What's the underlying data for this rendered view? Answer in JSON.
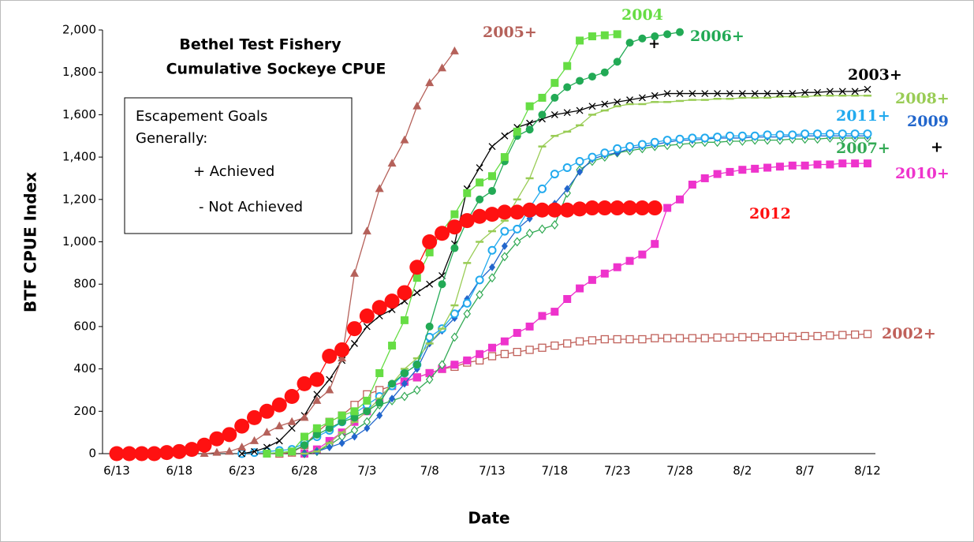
{
  "chart_data": {
    "type": "line",
    "title": [
      "Bethel Test Fishery",
      "Cumulative Sockeye CPUE"
    ],
    "box_text": [
      "Escapement  Goals",
      "Generally:",
      "+ Achieved",
      "- Not Achieved"
    ],
    "ylabel": "BTF CPUE Index",
    "xlabel": "Date",
    "annotations": [
      "+",
      "+"
    ],
    "categories": [
      "6/13",
      null,
      null,
      null,
      null,
      "6/18",
      null,
      null,
      null,
      null,
      "6/23",
      null,
      null,
      null,
      null,
      "6/28",
      null,
      null,
      null,
      null,
      "7/3",
      null,
      null,
      null,
      null,
      "7/8",
      null,
      null,
      null,
      null,
      "7/13",
      null,
      null,
      null,
      null,
      "7/18",
      null,
      null,
      null,
      null,
      "7/23",
      null,
      null,
      null,
      null,
      "7/28",
      null,
      null,
      null,
      null,
      "8/2",
      null,
      null,
      null,
      null,
      "8/7",
      null,
      null,
      null,
      null,
      "8/12"
    ],
    "ylim": [
      0,
      2000
    ],
    "yticks": [
      0,
      200,
      400,
      600,
      800,
      {
        "value": 1000,
        "label": "1,000"
      },
      {
        "value": 1200,
        "label": "1,200"
      },
      {
        "value": 1400,
        "label": "1,400"
      },
      {
        "value": 1600,
        "label": "1,600"
      },
      {
        "value": 1800,
        "label": "1,800"
      },
      {
        "value": 2000,
        "label": "2,000"
      }
    ],
    "grid": false,
    "series": [
      {
        "name": "2002+",
        "color": "#c0605a",
        "marker": "osquare",
        "values": [
          null,
          null,
          null,
          null,
          null,
          null,
          null,
          null,
          null,
          null,
          null,
          null,
          null,
          0,
          5,
          40,
          100,
          150,
          180,
          230,
          280,
          300,
          320,
          340,
          360,
          380,
          400,
          410,
          430,
          440,
          460,
          470,
          480,
          490,
          500,
          510,
          520,
          530,
          535,
          540,
          540,
          540,
          540,
          545,
          545,
          545,
          545,
          545,
          548,
          548,
          550,
          550,
          550,
          552,
          552,
          555,
          555,
          558,
          560,
          562,
          565
        ]
      },
      {
        "name": "2010+",
        "color": "#ee33cc",
        "marker": "square",
        "values": [
          null,
          null,
          null,
          null,
          null,
          null,
          null,
          null,
          null,
          null,
          null,
          null,
          null,
          null,
          null,
          0,
          20,
          60,
          100,
          150,
          200,
          260,
          320,
          340,
          360,
          380,
          400,
          420,
          440,
          470,
          500,
          530,
          570,
          600,
          650,
          670,
          730,
          780,
          820,
          850,
          880,
          910,
          940,
          990,
          1160,
          1200,
          1270,
          1300,
          1320,
          1330,
          1340,
          1345,
          1350,
          1355,
          1360,
          1360,
          1365,
          1365,
          1370,
          1370,
          1370
        ]
      },
      {
        "name": "2007+",
        "color": "#33aa55",
        "marker": "odiamond",
        "values": [
          null,
          null,
          null,
          null,
          null,
          null,
          null,
          null,
          null,
          null,
          null,
          null,
          null,
          null,
          null,
          0,
          10,
          40,
          80,
          110,
          150,
          230,
          250,
          270,
          300,
          350,
          420,
          550,
          660,
          750,
          830,
          930,
          1000,
          1040,
          1060,
          1080,
          1230,
          1340,
          1380,
          1400,
          1420,
          1430,
          1440,
          1450,
          1455,
          1460,
          1465,
          1470,
          1470,
          1475,
          1475,
          1480,
          1480,
          1480,
          1485,
          1485,
          1485,
          1490,
          1490,
          1490,
          1490
        ]
      },
      {
        "name": "2009",
        "color": "#2266cc",
        "marker": "diamond",
        "values": [
          null,
          null,
          null,
          null,
          null,
          null,
          null,
          null,
          null,
          null,
          null,
          null,
          null,
          null,
          null,
          0,
          10,
          30,
          50,
          80,
          120,
          180,
          260,
          330,
          400,
          520,
          580,
          640,
          730,
          820,
          880,
          980,
          1060,
          1110,
          1150,
          1180,
          1250,
          1330,
          1390,
          1410,
          1420,
          1440,
          1450,
          1460,
          1470,
          1480,
          1480,
          1485,
          1490,
          1490,
          1490,
          1495,
          1495,
          1495,
          1500,
          1500,
          1500,
          1500,
          1500,
          1500,
          1500
        ]
      },
      {
        "name": "2011+",
        "color": "#22aaee",
        "marker": "ocircle",
        "values": [
          null,
          null,
          null,
          null,
          null,
          null,
          null,
          null,
          null,
          null,
          0,
          5,
          10,
          15,
          20,
          50,
          80,
          110,
          150,
          190,
          230,
          270,
          320,
          380,
          420,
          550,
          590,
          660,
          710,
          820,
          960,
          1050,
          1060,
          1160,
          1250,
          1320,
          1350,
          1380,
          1400,
          1420,
          1440,
          1450,
          1460,
          1470,
          1480,
          1485,
          1490,
          1490,
          1495,
          1500,
          1500,
          1500,
          1505,
          1505,
          1505,
          1510,
          1510,
          1510,
          1510,
          1510,
          1510
        ]
      },
      {
        "name": "2008+",
        "color": "#99cc55",
        "marker": "dash",
        "values": [
          null,
          null,
          null,
          null,
          null,
          null,
          null,
          null,
          null,
          null,
          null,
          null,
          null,
          null,
          null,
          0,
          10,
          50,
          100,
          150,
          200,
          260,
          330,
          400,
          450,
          520,
          590,
          700,
          900,
          1000,
          1050,
          1100,
          1200,
          1300,
          1450,
          1500,
          1520,
          1550,
          1600,
          1620,
          1640,
          1650,
          1650,
          1660,
          1660,
          1665,
          1670,
          1670,
          1675,
          1675,
          1680,
          1680,
          1680,
          1685,
          1685,
          1685,
          1690,
          1690,
          1690,
          1690,
          1690
        ]
      },
      {
        "name": "2003+",
        "color": "#000000",
        "marker": "x",
        "values": [
          null,
          null,
          null,
          null,
          null,
          null,
          null,
          null,
          null,
          null,
          0,
          10,
          30,
          60,
          120,
          180,
          280,
          350,
          440,
          520,
          600,
          650,
          680,
          720,
          760,
          800,
          840,
          990,
          1250,
          1350,
          1450,
          1500,
          1540,
          1560,
          1580,
          1600,
          1610,
          1620,
          1640,
          1650,
          1660,
          1670,
          1680,
          1690,
          1700,
          1700,
          1700,
          1700,
          1700,
          1700,
          1700,
          1700,
          1700,
          1700,
          1700,
          1705,
          1705,
          1710,
          1710,
          1710,
          1720
        ]
      },
      {
        "name": "2006+",
        "color": "#22aa55",
        "marker": "circle",
        "values": [
          null,
          null,
          null,
          null,
          null,
          null,
          null,
          null,
          null,
          null,
          null,
          null,
          0,
          5,
          10,
          40,
          90,
          120,
          150,
          170,
          200,
          240,
          330,
          380,
          420,
          600,
          800,
          970,
          1100,
          1200,
          1240,
          1380,
          1500,
          1530,
          1600,
          1680,
          1730,
          1760,
          1780,
          1800,
          1850,
          1940,
          1960,
          1970,
          1980,
          1990,
          null,
          null,
          null,
          null,
          null,
          null,
          null,
          null,
          null,
          null,
          null,
          null,
          null,
          null,
          null
        ]
      },
      {
        "name": "2004",
        "color": "#66dd44",
        "marker": "square",
        "values": [
          null,
          null,
          null,
          null,
          null,
          null,
          null,
          null,
          null,
          null,
          null,
          null,
          0,
          5,
          10,
          80,
          120,
          150,
          180,
          200,
          250,
          380,
          510,
          630,
          830,
          950,
          1050,
          1130,
          1230,
          1280,
          1310,
          1400,
          1520,
          1640,
          1680,
          1750,
          1830,
          1950,
          1970,
          1975,
          1980,
          null,
          null,
          null,
          null,
          null,
          null,
          null,
          null,
          null,
          null,
          null,
          null,
          null,
          null,
          null,
          null,
          null,
          null,
          null,
          null
        ]
      },
      {
        "name": "2005+",
        "color": "#b5615a",
        "marker": "triangle",
        "values": [
          null,
          null,
          null,
          null,
          null,
          null,
          null,
          0,
          5,
          10,
          30,
          60,
          100,
          130,
          150,
          170,
          250,
          300,
          450,
          850,
          1050,
          1250,
          1370,
          1480,
          1640,
          1750,
          1820,
          1900,
          null,
          null,
          null,
          null,
          null,
          null,
          null,
          null,
          null,
          null,
          null,
          null,
          null,
          null,
          null,
          null,
          null,
          null,
          null,
          null,
          null,
          null,
          null,
          null,
          null,
          null,
          null,
          null,
          null,
          null,
          null,
          null,
          null
        ]
      },
      {
        "name": "2012",
        "color": "#ff1111",
        "marker": "bigcircle",
        "values": [
          0,
          0,
          0,
          0,
          5,
          10,
          20,
          40,
          70,
          90,
          130,
          170,
          200,
          230,
          270,
          330,
          350,
          460,
          490,
          590,
          650,
          690,
          720,
          760,
          880,
          1000,
          1040,
          1070,
          1100,
          1120,
          1130,
          1140,
          1140,
          1150,
          1150,
          1150,
          1150,
          1155,
          1160,
          1160,
          1160,
          1160,
          1160,
          1160,
          null,
          null,
          null,
          null,
          null,
          null,
          null,
          null,
          null,
          null,
          null,
          null,
          null,
          null,
          null,
          null,
          null
        ]
      }
    ]
  }
}
